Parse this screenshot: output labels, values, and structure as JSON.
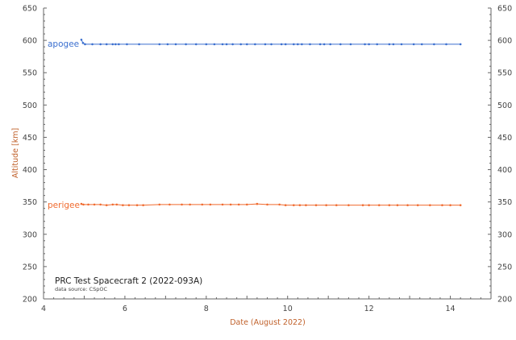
{
  "chart_data": {
    "type": "line",
    "title": "PRC Test Spacecraft 2 (2022-093A)",
    "subtitle": "data source:  CSpOC",
    "xlabel": "Date (August 2022)",
    "ylabel": "Altitude [km]",
    "xlim": [
      4,
      15
    ],
    "ylim": [
      200,
      650
    ],
    "xticks": [
      4,
      6,
      8,
      10,
      12,
      14
    ],
    "yticks": [
      200,
      250,
      300,
      350,
      400,
      450,
      500,
      550,
      600,
      650
    ],
    "grid": false,
    "series": [
      {
        "name": "apogee",
        "color": "#3b6fcf",
        "points": [
          [
            4.93,
            601
          ],
          [
            4.97,
            596
          ],
          [
            5.02,
            594
          ],
          [
            5.2,
            594
          ],
          [
            5.4,
            594
          ],
          [
            5.55,
            594
          ],
          [
            5.7,
            594
          ],
          [
            5.77,
            594
          ],
          [
            5.85,
            594
          ],
          [
            6.05,
            594
          ],
          [
            6.35,
            594
          ],
          [
            6.85,
            594
          ],
          [
            7.05,
            594
          ],
          [
            7.25,
            594
          ],
          [
            7.5,
            594
          ],
          [
            7.75,
            594
          ],
          [
            8.0,
            594
          ],
          [
            8.2,
            594
          ],
          [
            8.4,
            594
          ],
          [
            8.5,
            594
          ],
          [
            8.65,
            594
          ],
          [
            8.85,
            594
          ],
          [
            9.0,
            594
          ],
          [
            9.2,
            594
          ],
          [
            9.45,
            594
          ],
          [
            9.6,
            594
          ],
          [
            9.85,
            594
          ],
          [
            9.95,
            594
          ],
          [
            10.15,
            594
          ],
          [
            10.25,
            594
          ],
          [
            10.35,
            594
          ],
          [
            10.55,
            594
          ],
          [
            10.8,
            594
          ],
          [
            10.9,
            594
          ],
          [
            11.05,
            594
          ],
          [
            11.3,
            594
          ],
          [
            11.55,
            594
          ],
          [
            11.9,
            594
          ],
          [
            12.0,
            594
          ],
          [
            12.2,
            594
          ],
          [
            12.5,
            594
          ],
          [
            12.6,
            594
          ],
          [
            12.8,
            594
          ],
          [
            13.1,
            594
          ],
          [
            13.3,
            594
          ],
          [
            13.6,
            594
          ],
          [
            13.9,
            594
          ],
          [
            14.25,
            594
          ]
        ]
      },
      {
        "name": "perigee",
        "color": "#f06a2e",
        "points": [
          [
            4.93,
            347
          ],
          [
            4.98,
            346
          ],
          [
            5.1,
            346
          ],
          [
            5.25,
            346
          ],
          [
            5.4,
            346
          ],
          [
            5.55,
            345
          ],
          [
            5.7,
            346
          ],
          [
            5.8,
            346
          ],
          [
            5.95,
            345
          ],
          [
            6.1,
            345
          ],
          [
            6.3,
            345
          ],
          [
            6.45,
            345
          ],
          [
            6.85,
            346
          ],
          [
            7.1,
            346
          ],
          [
            7.4,
            346
          ],
          [
            7.6,
            346
          ],
          [
            7.9,
            346
          ],
          [
            8.1,
            346
          ],
          [
            8.4,
            346
          ],
          [
            8.6,
            346
          ],
          [
            8.8,
            346
          ],
          [
            9.0,
            346
          ],
          [
            9.25,
            347
          ],
          [
            9.5,
            346
          ],
          [
            9.8,
            346
          ],
          [
            9.95,
            345
          ],
          [
            10.15,
            345
          ],
          [
            10.3,
            345
          ],
          [
            10.45,
            345
          ],
          [
            10.7,
            345
          ],
          [
            10.95,
            345
          ],
          [
            11.2,
            345
          ],
          [
            11.5,
            345
          ],
          [
            11.85,
            345
          ],
          [
            12.0,
            345
          ],
          [
            12.25,
            345
          ],
          [
            12.5,
            345
          ],
          [
            12.7,
            345
          ],
          [
            12.95,
            345
          ],
          [
            13.2,
            345
          ],
          [
            13.5,
            345
          ],
          [
            13.8,
            345
          ],
          [
            14.0,
            345
          ],
          [
            14.25,
            345
          ]
        ]
      }
    ]
  }
}
